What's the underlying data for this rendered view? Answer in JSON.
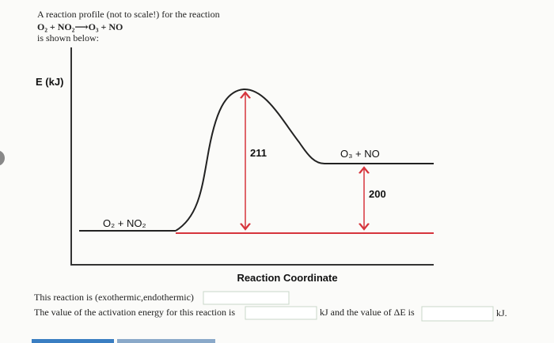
{
  "header": {
    "intro": "A reaction profile (not to scale!) for the reaction",
    "equation": "O₂ + NO₂⟶O₃ + NO",
    "outro": "is shown below:"
  },
  "diagram": {
    "y_axis_label": "E (kJ)",
    "x_axis_label": "Reaction Coordinate",
    "reactants": "O₂ + NO₂",
    "products": "O₃ + NO",
    "activation_label": 211,
    "difference_label": 200
  },
  "questions": {
    "q1": "This reaction is (exothermic,endothermic)",
    "q2_before": "The value of the activation energy for this reaction is",
    "q2_middle": "kJ and the value of ΔE is",
    "q2_after": "kJ."
  }
}
